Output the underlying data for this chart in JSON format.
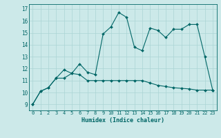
{
  "xlabel": "Humidex (Indice chaleur)",
  "bg_color": "#cce9e9",
  "line_color": "#006666",
  "grid_color": "#aad4d4",
  "xlim": [
    -0.5,
    23.5
  ],
  "ylim": [
    8.5,
    17.4
  ],
  "xticks": [
    0,
    1,
    2,
    3,
    4,
    5,
    6,
    7,
    8,
    9,
    10,
    11,
    12,
    13,
    14,
    15,
    16,
    17,
    18,
    19,
    20,
    21,
    22,
    23
  ],
  "yticks": [
    9,
    10,
    11,
    12,
    13,
    14,
    15,
    16,
    17
  ],
  "line1_x": [
    0,
    1,
    2,
    3,
    4,
    5,
    6,
    7,
    8,
    9,
    10,
    11,
    12,
    13,
    14,
    15,
    16,
    17,
    18,
    19,
    20,
    21,
    22,
    23
  ],
  "line1_y": [
    9.0,
    10.1,
    10.4,
    11.2,
    11.2,
    11.6,
    11.5,
    11.0,
    11.0,
    11.0,
    11.0,
    11.0,
    11.0,
    11.0,
    11.0,
    10.8,
    10.6,
    10.5,
    10.4,
    10.35,
    10.3,
    10.2,
    10.2,
    10.2
  ],
  "line2_x": [
    0,
    1,
    2,
    3,
    4,
    5,
    6,
    7,
    8,
    9,
    10,
    11,
    12,
    13,
    14,
    15,
    16,
    17,
    18,
    19,
    20,
    21,
    22,
    23
  ],
  "line2_y": [
    9.0,
    10.1,
    10.4,
    11.2,
    11.9,
    11.6,
    12.4,
    11.7,
    11.5,
    14.9,
    15.5,
    16.7,
    16.3,
    13.8,
    13.5,
    15.4,
    15.2,
    14.6,
    15.3,
    15.3,
    15.7,
    15.7,
    13.0,
    10.2
  ],
  "xlabel_fontsize": 6,
  "tick_fontsize": 5,
  "marker_size": 2
}
